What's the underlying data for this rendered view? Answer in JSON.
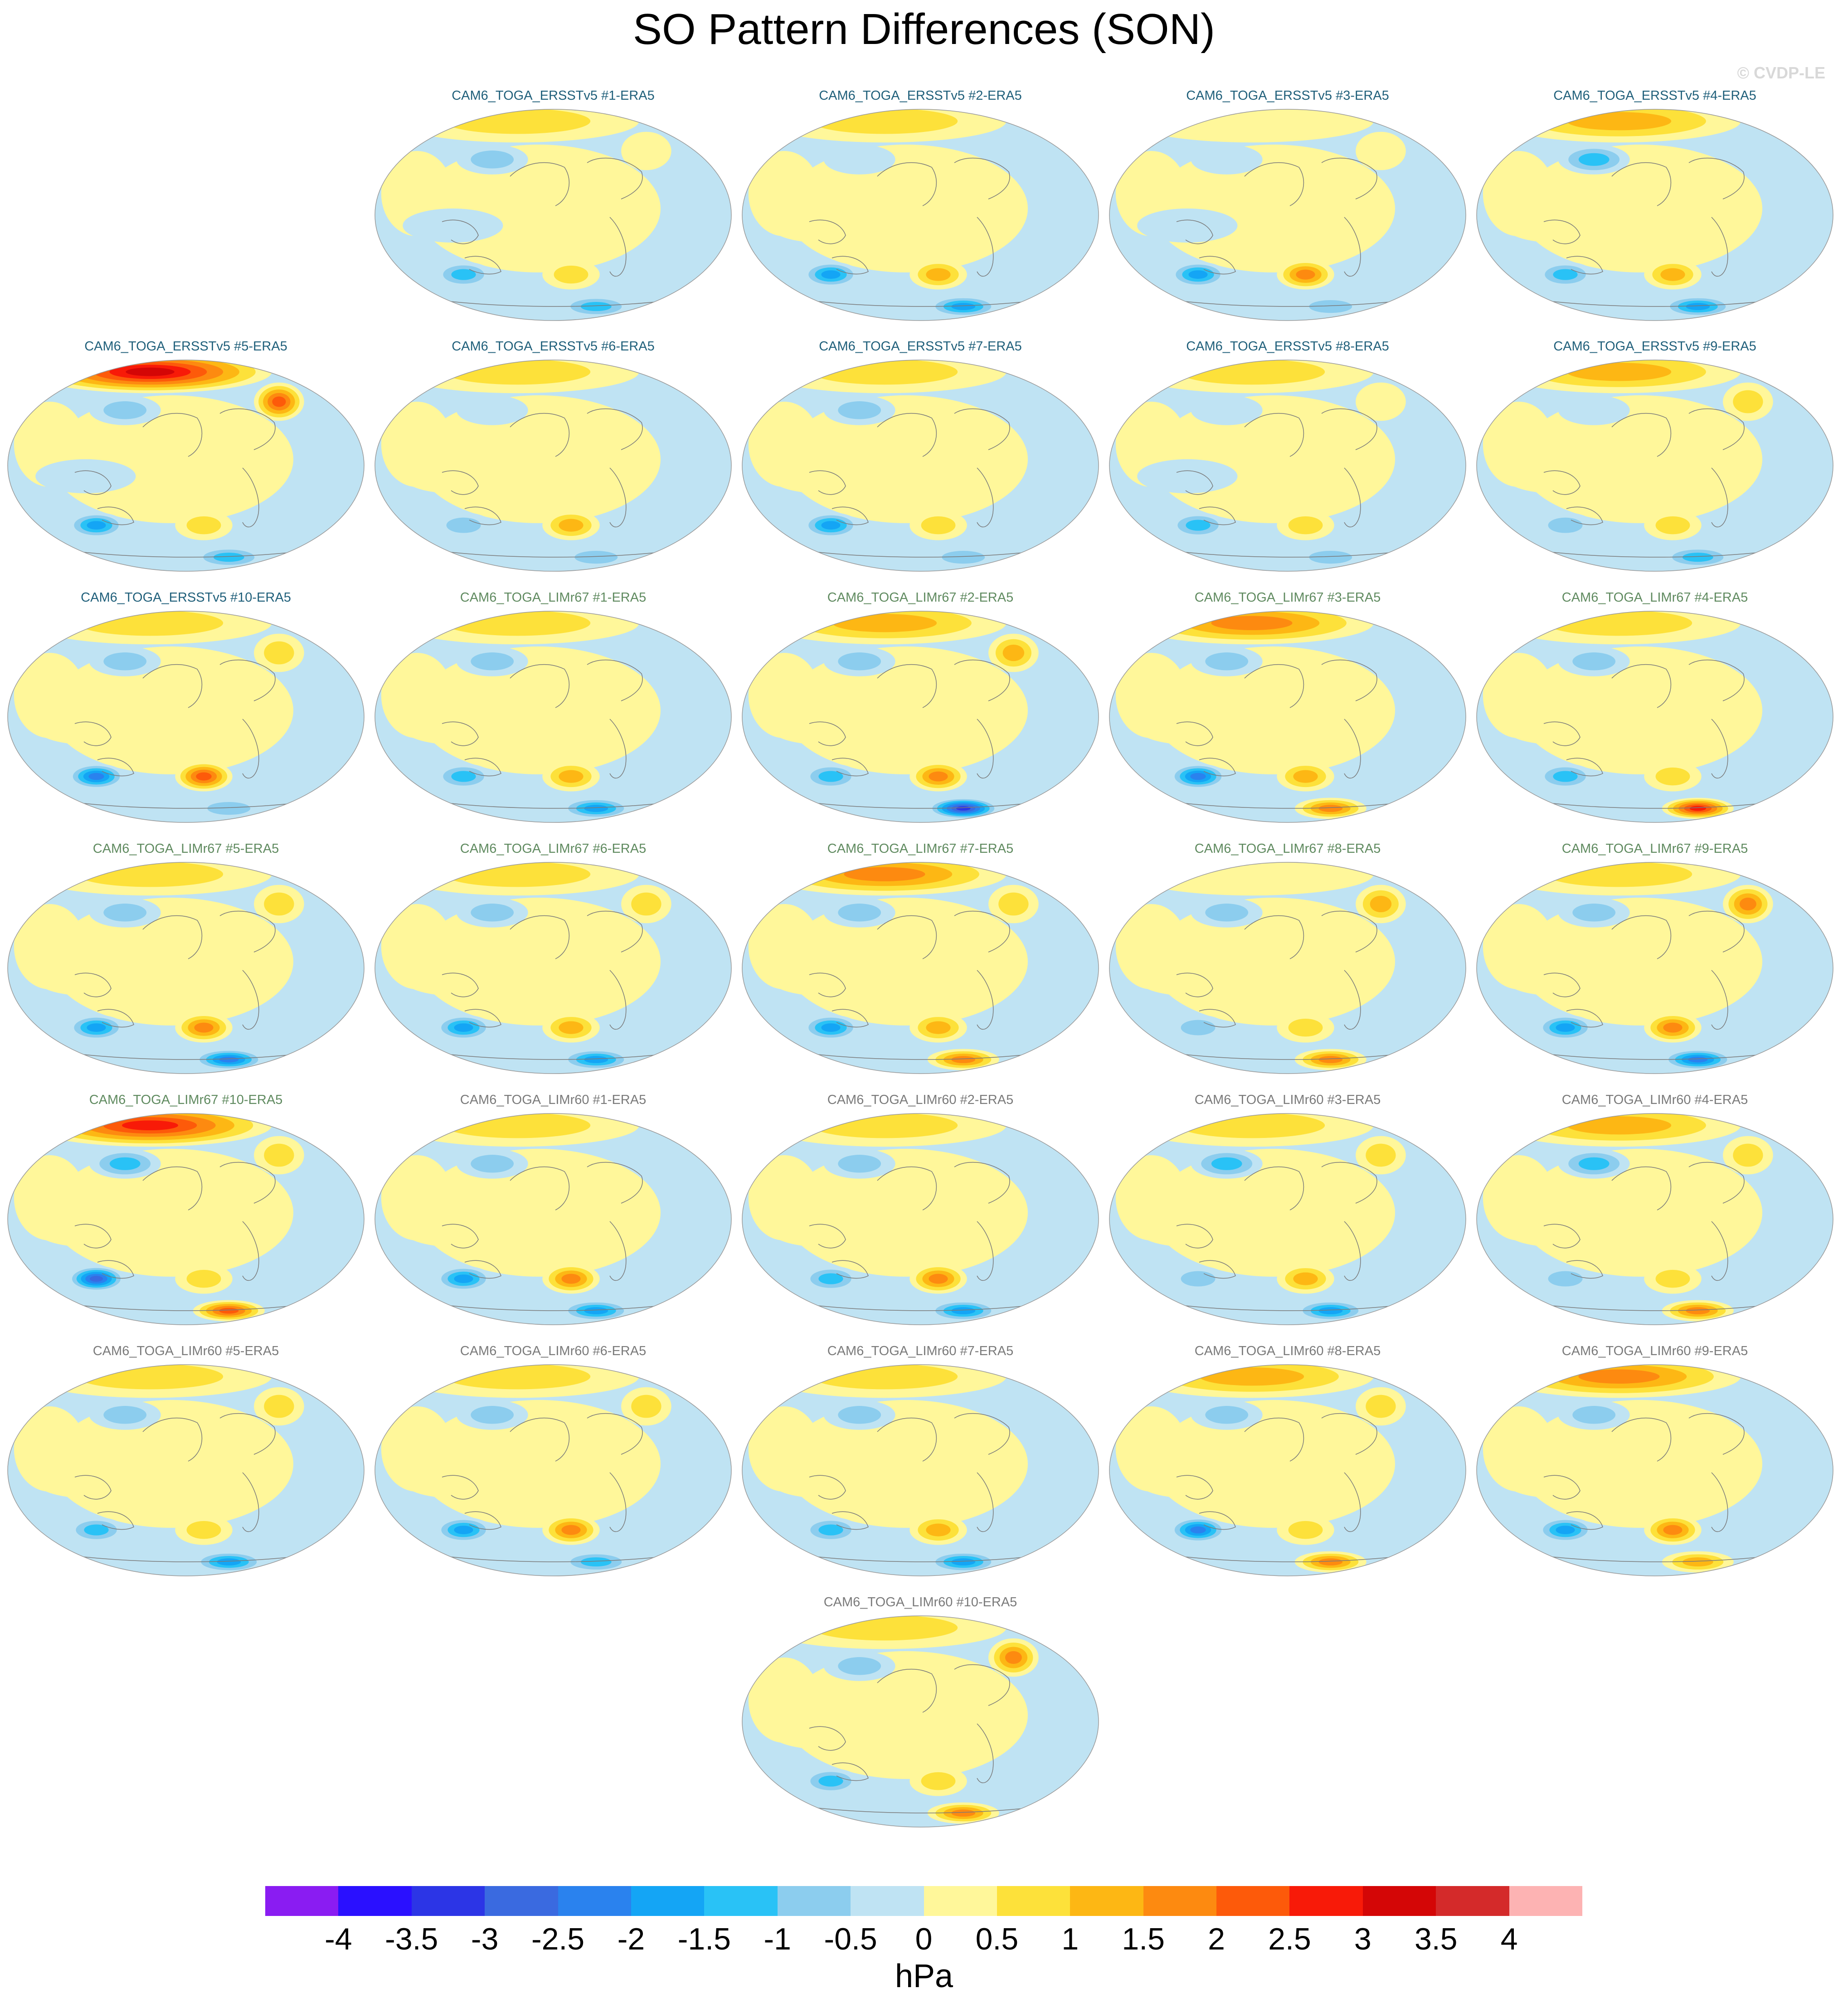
{
  "title": "SO Pattern Differences (SON)",
  "copyright": "© CVDP-LE",
  "colors": {
    "group_ersstv5": "#1f5f7a",
    "group_limr67": "#5f8a5f",
    "group_limr60": "#7a7a7a",
    "ocean_light_blue": "#bfe3f3",
    "yellow": "#fff79a"
  },
  "panels": [
    {
      "label": "CAM6_TOGA_ERSSTv5 #1-ERA5",
      "group": "ersstv5",
      "pattern": [
        0.8,
        -0.6,
        -0.3,
        0.2,
        -1.2,
        0.9,
        -1.4
      ]
    },
    {
      "label": "CAM6_TOGA_ERSSTv5 #2-ERA5",
      "group": "ersstv5",
      "pattern": [
        0.6,
        -0.5,
        0.3,
        -0.2,
        -1.8,
        1.3,
        -2.0
      ]
    },
    {
      "label": "CAM6_TOGA_ERSSTv5 #3-ERA5",
      "group": "ersstv5",
      "pattern": [
        0.5,
        -0.4,
        -0.2,
        0.4,
        -2.0,
        1.6,
        -1.0
      ]
    },
    {
      "label": "CAM6_TOGA_ERSSTv5 #4-ERA5",
      "group": "ersstv5",
      "pattern": [
        1.2,
        -1.4,
        0.3,
        -0.3,
        -1.4,
        1.2,
        -1.8
      ]
    },
    {
      "label": "CAM6_TOGA_ERSSTv5 #5-ERA5",
      "group": "ersstv5",
      "pattern": [
        3.4,
        -1.0,
        -0.4,
        2.2,
        -1.6,
        0.6,
        -1.2
      ]
    },
    {
      "label": "CAM6_TOGA_ERSSTv5 #6-ERA5",
      "group": "ersstv5",
      "pattern": [
        1.0,
        -0.5,
        0.4,
        -0.2,
        -1.0,
        1.2,
        -0.6
      ]
    },
    {
      "label": "CAM6_TOGA_ERSSTv5 #7-ERA5",
      "group": "ersstv5",
      "pattern": [
        0.7,
        -0.6,
        0.3,
        -0.3,
        -2.0,
        0.6,
        -0.8
      ]
    },
    {
      "label": "CAM6_TOGA_ERSSTv5 #8-ERA5",
      "group": "ersstv5",
      "pattern": [
        0.9,
        -0.4,
        -0.2,
        0.3,
        -1.2,
        0.7,
        -1.0
      ]
    },
    {
      "label": "CAM6_TOGA_ERSSTv5 #9-ERA5",
      "group": "ersstv5",
      "pattern": [
        1.1,
        -0.3,
        0.3,
        0.9,
        -1.0,
        0.6,
        -1.4
      ]
    },
    {
      "label": "CAM6_TOGA_ERSSTv5 #10-ERA5",
      "group": "ersstv5",
      "pattern": [
        0.8,
        -0.7,
        0.2,
        0.6,
        -2.2,
        2.2,
        -0.8
      ]
    },
    {
      "label": "CAM6_TOGA_LIMr67 #1-ERA5",
      "group": "limr67",
      "pattern": [
        1.0,
        -0.6,
        0.4,
        -0.3,
        -1.4,
        1.4,
        -2.0
      ]
    },
    {
      "label": "CAM6_TOGA_LIMr67 #2-ERA5",
      "group": "limr67",
      "pattern": [
        1.4,
        -0.7,
        0.3,
        1.4,
        -1.4,
        1.6,
        -3.2
      ]
    },
    {
      "label": "CAM6_TOGA_LIMr67 #3-ERA5",
      "group": "limr67",
      "pattern": [
        1.8,
        -0.8,
        0.3,
        -0.3,
        -2.4,
        1.4,
        1.8
      ]
    },
    {
      "label": "CAM6_TOGA_LIMr67 #4-ERA5",
      "group": "limr67",
      "pattern": [
        1.0,
        -0.9,
        0.3,
        -0.4,
        -1.2,
        1.0,
        2.6
      ]
    },
    {
      "label": "CAM6_TOGA_LIMr67 #5-ERA5",
      "group": "limr67",
      "pattern": [
        0.9,
        -0.8,
        0.4,
        1.0,
        -1.6,
        1.6,
        -2.2
      ]
    },
    {
      "label": "CAM6_TOGA_LIMr67 #6-ERA5",
      "group": "limr67",
      "pattern": [
        1.0,
        -0.9,
        0.4,
        0.9,
        -1.8,
        1.2,
        -1.6
      ]
    },
    {
      "label": "CAM6_TOGA_LIMr67 #7-ERA5",
      "group": "limr67",
      "pattern": [
        1.6,
        -0.7,
        0.2,
        1.0,
        -2.0,
        1.4,
        1.6
      ]
    },
    {
      "label": "CAM6_TOGA_LIMr67 #8-ERA5",
      "group": "limr67",
      "pattern": [
        0.5,
        -1.0,
        0.3,
        1.4,
        -0.6,
        0.9,
        1.8
      ]
    },
    {
      "label": "CAM6_TOGA_LIMr67 #9-ERA5",
      "group": "limr67",
      "pattern": [
        1.0,
        -1.0,
        0.2,
        1.6,
        -2.0,
        1.8,
        -2.2
      ]
    },
    {
      "label": "CAM6_TOGA_LIMr67 #10-ERA5",
      "group": "limr67",
      "pattern": [
        2.6,
        -1.2,
        0.3,
        0.8,
        -3.0,
        1.0,
        2.2
      ]
    },
    {
      "label": "CAM6_TOGA_LIMr60 #1-ERA5",
      "group": "limr60",
      "pattern": [
        0.8,
        -1.0,
        0.5,
        -0.4,
        -1.8,
        1.8,
        -2.0
      ]
    },
    {
      "label": "CAM6_TOGA_LIMr60 #2-ERA5",
      "group": "limr60",
      "pattern": [
        1.0,
        -0.9,
        0.4,
        -0.3,
        -1.2,
        1.6,
        -2.0
      ]
    },
    {
      "label": "CAM6_TOGA_LIMr60 #3-ERA5",
      "group": "limr60",
      "pattern": [
        0.6,
        -1.2,
        0.3,
        0.9,
        -1.0,
        1.4,
        -1.6
      ]
    },
    {
      "label": "CAM6_TOGA_LIMr60 #4-ERA5",
      "group": "limr60",
      "pattern": [
        1.2,
        -1.2,
        0.3,
        0.8,
        -0.8,
        0.9,
        1.6
      ]
    },
    {
      "label": "CAM6_TOGA_LIMr60 #5-ERA5",
      "group": "limr60",
      "pattern": [
        1.0,
        -0.8,
        0.4,
        0.6,
        -1.4,
        1.0,
        -1.6
      ]
    },
    {
      "label": "CAM6_TOGA_LIMr60 #6-ERA5",
      "group": "limr60",
      "pattern": [
        1.0,
        -1.0,
        0.3,
        0.9,
        -1.6,
        1.6,
        -1.2
      ]
    },
    {
      "label": "CAM6_TOGA_LIMr60 #7-ERA5",
      "group": "limr60",
      "pattern": [
        0.6,
        -1.0,
        0.4,
        -0.3,
        -1.4,
        1.2,
        -2.0
      ]
    },
    {
      "label": "CAM6_TOGA_LIMr60 #8-ERA5",
      "group": "limr60",
      "pattern": [
        1.2,
        -1.0,
        0.3,
        0.6,
        -2.2,
        1.0,
        2.0
      ]
    },
    {
      "label": "CAM6_TOGA_LIMr60 #9-ERA5",
      "group": "limr60",
      "pattern": [
        1.6,
        -1.0,
        0.4,
        -0.3,
        -1.6,
        1.6,
        1.4
      ]
    },
    {
      "label": "CAM6_TOGA_LIMr60 #10-ERA5",
      "group": "limr60",
      "pattern": [
        0.8,
        -0.8,
        0.4,
        1.8,
        -1.4,
        1.0,
        2.0
      ]
    }
  ],
  "legend": {
    "unit": "hPa",
    "ticks": [
      "-4",
      "-3.5",
      "-3",
      "-2.5",
      "-2",
      "-1.5",
      "-1",
      "-0.5",
      "0",
      "0.5",
      "1",
      "1.5",
      "2",
      "2.5",
      "3",
      "3.5",
      "4"
    ],
    "colors": [
      "#8a1cf2",
      "#2a10ff",
      "#2c35e6",
      "#3a6ae0",
      "#2a82ee",
      "#14a5f5",
      "#29c2f6",
      "#8ccdee",
      "#bfe3f3",
      "#fff79a",
      "#fde13a",
      "#fdb714",
      "#fd8a10",
      "#fd5a0a",
      "#f81a08",
      "#d40606",
      "#d42a2a",
      "#fdb3b3"
    ]
  }
}
